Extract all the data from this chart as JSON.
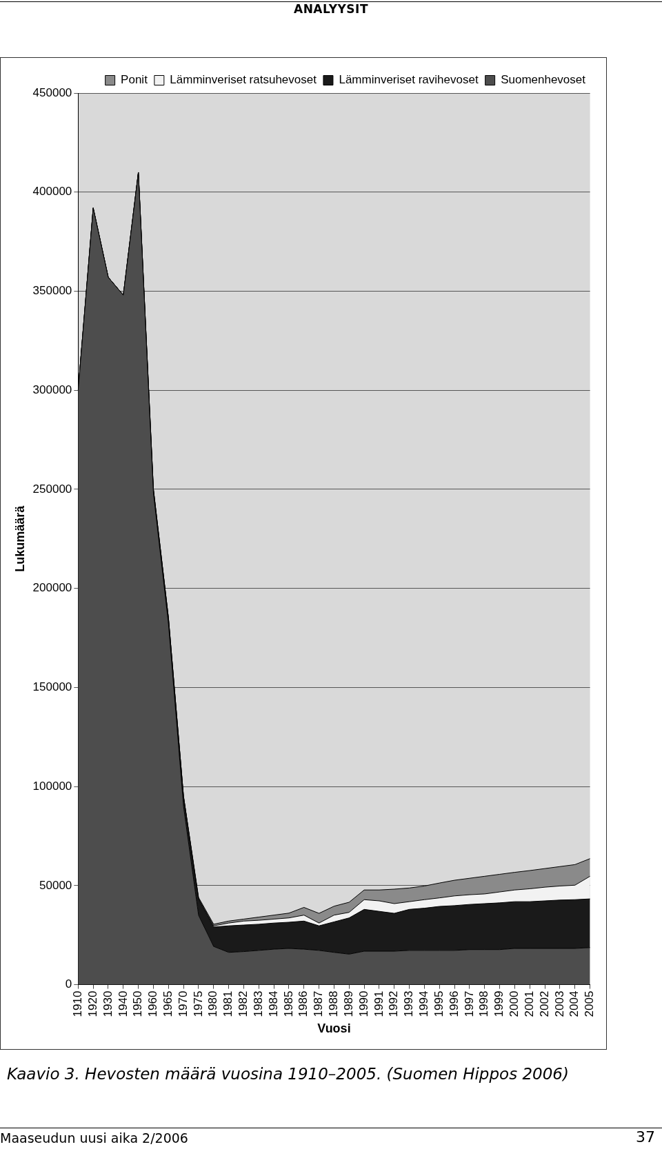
{
  "chart_data": {
    "type": "area",
    "stacked": true,
    "xlabel": "Vuosi",
    "ylabel": "Lukumäärä",
    "categories": [
      "1910",
      "1920",
      "1930",
      "1940",
      "1950",
      "1960",
      "1965",
      "1970",
      "1975",
      "1980",
      "1981",
      "1982",
      "1983",
      "1984",
      "1985",
      "1986",
      "1987",
      "1988",
      "1989",
      "1990",
      "1991",
      "1992",
      "1993",
      "1994",
      "1995",
      "1996",
      "1997",
      "1998",
      "1999",
      "2000",
      "2001",
      "2002",
      "2003",
      "2004",
      "2005"
    ],
    "series": [
      {
        "name": "Suomenhevoset",
        "color": "#4d4d4d",
        "values": [
          300000,
          392000,
          357000,
          348000,
          410000,
          248000,
          182000,
          90000,
          35000,
          19300,
          16300,
          16700,
          17300,
          17900,
          18300,
          17900,
          17300,
          16300,
          15400,
          16900,
          16900,
          16900,
          17300,
          17300,
          17300,
          17300,
          17700,
          17700,
          17700,
          18300,
          18300,
          18300,
          18300,
          18300,
          18700
        ]
      },
      {
        "name": "Lämminveriset ravihevoset",
        "color": "#1a1a1a",
        "values": [
          0,
          0,
          0,
          0,
          0,
          2000,
          3000,
          5000,
          8000,
          9800,
          13400,
          13400,
          13200,
          13200,
          13200,
          14200,
          12400,
          15400,
          18300,
          21100,
          20100,
          19100,
          20700,
          21300,
          22200,
          22600,
          22800,
          23200,
          23600,
          23600,
          23600,
          24000,
          24400,
          24600,
          24600
        ]
      },
      {
        "name": "Lämminveriset ratsuhevoset",
        "color": "#f2f2f2",
        "values": [
          0,
          0,
          0,
          0,
          0,
          0,
          0,
          0,
          500,
          600,
          1400,
          2000,
          2000,
          2000,
          2200,
          3000,
          1400,
          3400,
          2800,
          4900,
          5300,
          4900,
          3900,
          4300,
          4300,
          4900,
          4900,
          4900,
          5500,
          5900,
          6500,
          6900,
          7100,
          7300,
          11400
        ]
      },
      {
        "name": "Ponit",
        "color": "#8a8a8a",
        "values": [
          0,
          0,
          0,
          0,
          0,
          0,
          0,
          0,
          500,
          800,
          1000,
          1000,
          1600,
          2000,
          2400,
          3900,
          4900,
          4500,
          5100,
          4900,
          5500,
          7300,
          6900,
          6900,
          7500,
          7900,
          8300,
          8900,
          8900,
          8900,
          9200,
          9400,
          9800,
          10400,
          8900
        ]
      }
    ],
    "ylim": [
      0,
      450000
    ],
    "yticks": [
      0,
      50000,
      100000,
      150000,
      200000,
      250000,
      300000,
      350000,
      400000,
      450000
    ],
    "grid": "y",
    "legend": "top right",
    "marker": "none",
    "annotations": [
      "ANALYYSIT",
      "Kaavio 3. Hevosten määrä vuosina 1910–2005. (Suomen Hippos 2006)",
      "Maaseudun uusi aika 2/2006",
      "37"
    ]
  }
}
